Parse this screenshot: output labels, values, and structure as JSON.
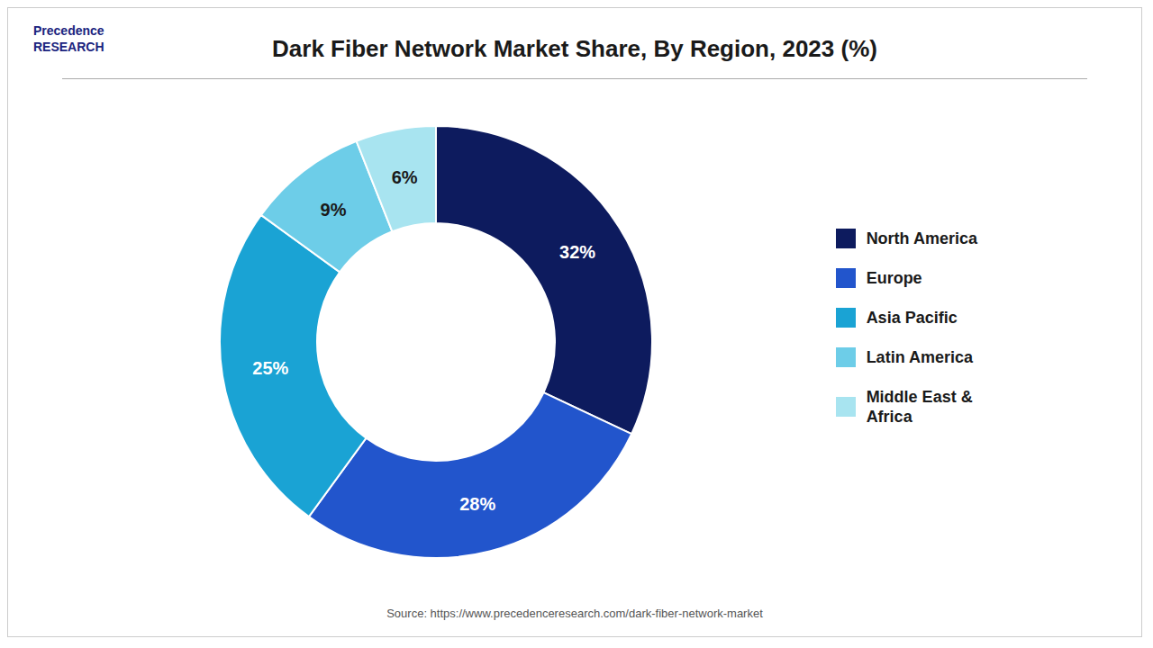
{
  "chart_data": {
    "type": "pie",
    "title": "Dark Fiber Network Market Share, By Region, 2023 (%)",
    "categories": [
      "North America",
      "Europe",
      "Asia Pacific",
      "Latin America",
      "Middle East &\nAfrica"
    ],
    "values": [
      32,
      28,
      25,
      9,
      6
    ],
    "value_labels": [
      "32%",
      "28%",
      "25%",
      "9%",
      "6%"
    ],
    "colors": [
      "#0d1b5e",
      "#2255cc",
      "#1aa3d4",
      "#6dcde8",
      "#a8e4f0"
    ],
    "data_labels": true,
    "legend": "right",
    "annotations": [
      "Precedence\nRESEARCH",
      "Source: https://www.precedenceresearch.com/dark-fiber-network-market"
    ]
  }
}
